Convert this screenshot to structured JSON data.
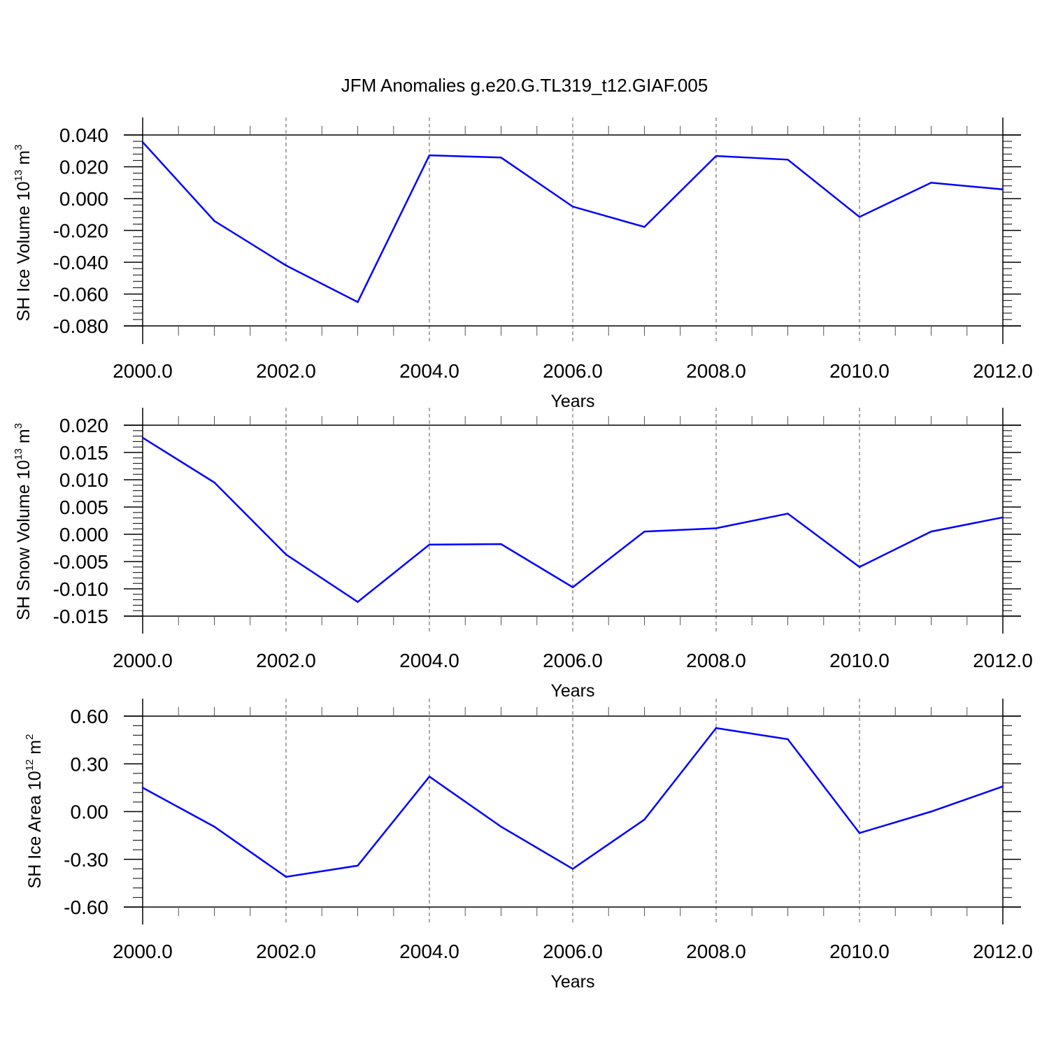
{
  "figure": {
    "title": "JFM Anomalies g.e20.G.TL319_t12.GIAF.005"
  },
  "chart_data": [
    {
      "type": "line",
      "xlabel": "Years",
      "ylabel": {
        "prefix": "SH Ice Volume 10",
        "exponent": "13",
        "unit": " m",
        "unit_exponent": "3"
      },
      "xlim": [
        2000,
        2012
      ],
      "ylim": [
        -0.08,
        0.04
      ],
      "x_ticks": [
        2000,
        2002,
        2004,
        2006,
        2008,
        2010,
        2012
      ],
      "x_tick_labels": [
        "2000.0",
        "2002.0",
        "2004.0",
        "2006.0",
        "2008.0",
        "2010.0",
        "2012.0"
      ],
      "y_ticks": [
        0.04,
        0.02,
        0.0,
        -0.02,
        -0.04,
        -0.06,
        -0.08
      ],
      "y_tick_labels": [
        "0.040",
        "0.020",
        "0.000",
        "-0.020",
        "-0.040",
        "-0.060",
        "-0.080"
      ],
      "x_gridlines": "dashed at major x ticks",
      "series": [
        {
          "color": "#0000ff",
          "x": [
            2000,
            2001,
            2002,
            2003,
            2004,
            2005,
            2006,
            2007,
            2008,
            2009,
            2010,
            2011,
            2012
          ],
          "y": [
            0.0355,
            -0.014,
            -0.042,
            -0.065,
            0.0272,
            0.0258,
            -0.005,
            -0.0178,
            0.0268,
            0.0245,
            -0.0115,
            0.01,
            0.0058
          ]
        }
      ]
    },
    {
      "type": "line",
      "xlabel": "Years",
      "ylabel": {
        "prefix": "SH Snow Volume 10",
        "exponent": "13",
        "unit": " m",
        "unit_exponent": "3"
      },
      "xlim": [
        2000,
        2012
      ],
      "ylim": [
        -0.015,
        0.02
      ],
      "x_ticks": [
        2000,
        2002,
        2004,
        2006,
        2008,
        2010,
        2012
      ],
      "x_tick_labels": [
        "2000.0",
        "2002.0",
        "2004.0",
        "2006.0",
        "2008.0",
        "2010.0",
        "2012.0"
      ],
      "y_ticks": [
        0.02,
        0.015,
        0.01,
        0.005,
        0.0,
        -0.005,
        -0.01,
        -0.015
      ],
      "y_tick_labels": [
        "0.020",
        "0.015",
        "0.010",
        "0.005",
        "0.000",
        "-0.005",
        "-0.010",
        "-0.015"
      ],
      "x_gridlines": "dashed at major x ticks",
      "series": [
        {
          "color": "#0000ff",
          "x": [
            2000,
            2001,
            2002,
            2003,
            2004,
            2005,
            2006,
            2007,
            2008,
            2009,
            2010,
            2011,
            2012
          ],
          "y": [
            0.0177,
            0.0095,
            -0.0037,
            -0.0124,
            -0.0019,
            -0.0018,
            -0.0097,
            0.0005,
            0.0011,
            0.0038,
            -0.006,
            0.0005,
            0.0031
          ]
        }
      ]
    },
    {
      "type": "line",
      "xlabel": "Years",
      "ylabel": {
        "prefix": "SH Ice Area 10",
        "exponent": "12",
        "unit": " m",
        "unit_exponent": "2"
      },
      "xlim": [
        2000,
        2012
      ],
      "ylim": [
        -0.6,
        0.6
      ],
      "x_ticks": [
        2000,
        2002,
        2004,
        2006,
        2008,
        2010,
        2012
      ],
      "x_tick_labels": [
        "2000.0",
        "2002.0",
        "2004.0",
        "2006.0",
        "2008.0",
        "2010.0",
        "2012.0"
      ],
      "y_ticks": [
        0.6,
        0.3,
        0.0,
        -0.3,
        -0.6
      ],
      "y_tick_labels": [
        "0.60",
        "0.30",
        "0.00",
        "-0.30",
        "-0.60"
      ],
      "x_gridlines": "dashed at major x ticks",
      "series": [
        {
          "color": "#0000ff",
          "x": [
            2000,
            2001,
            2002,
            2003,
            2004,
            2005,
            2006,
            2007,
            2008,
            2009,
            2010,
            2011,
            2012
          ],
          "y": [
            0.15,
            -0.095,
            -0.41,
            -0.34,
            0.22,
            -0.095,
            -0.36,
            -0.05,
            0.525,
            0.455,
            -0.135,
            0.0,
            0.158
          ]
        }
      ]
    }
  ]
}
